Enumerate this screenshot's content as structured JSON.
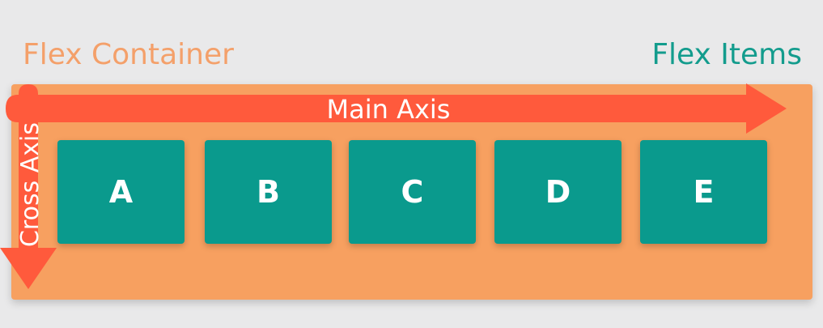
{
  "labels": {
    "container": "Flex Container",
    "items": "Flex Items"
  },
  "axes": {
    "main": "Main Axis",
    "cross": "Cross Axis"
  },
  "flex_items": [
    "A",
    "B",
    "C",
    "D",
    "E"
  ],
  "colors": {
    "background": "#e9e9ea",
    "container": "#f7a060",
    "container_label": "#f4a06a",
    "items_label": "#139c8d",
    "item": "#0a9a8d",
    "axis_arrow": "#ff5a3c",
    "text_light": "#ffffff"
  }
}
